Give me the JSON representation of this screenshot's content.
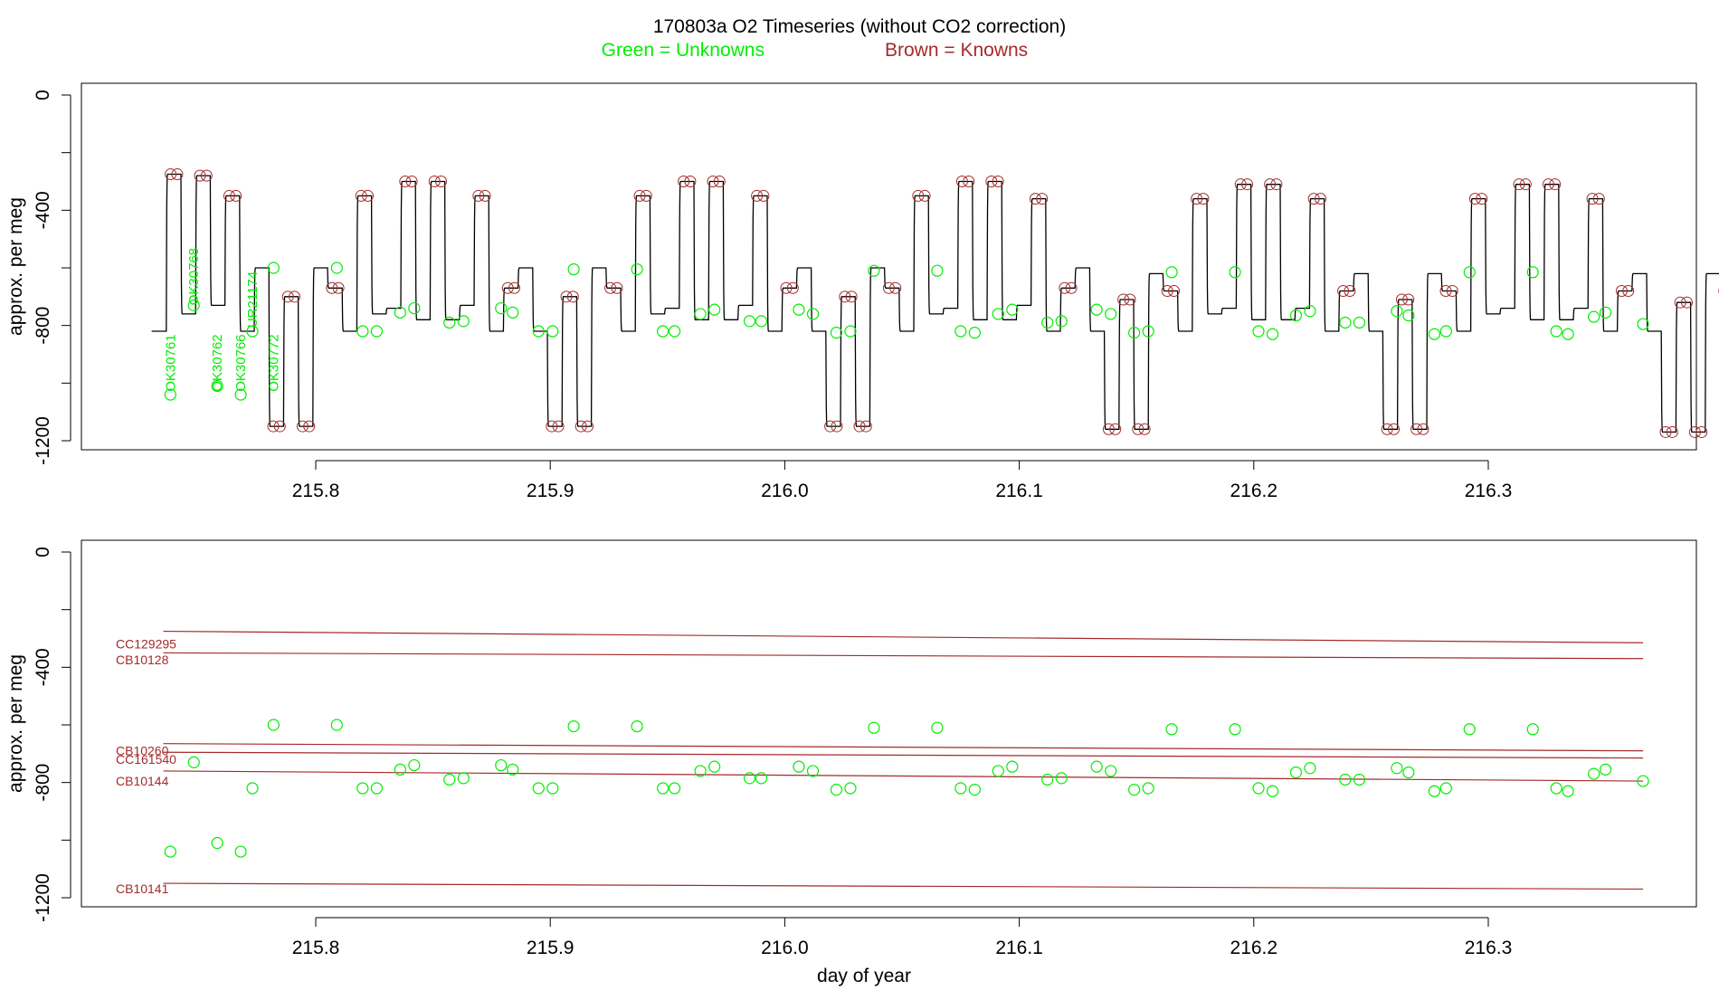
{
  "title_line1": "170803a   O2 Timeseries (without CO2 correction)",
  "legend": {
    "green_label": "Green = Unknowns",
    "brown_label": "Brown = Knowns",
    "green_color": "#00ee00",
    "brown_color": "#a52a2a"
  },
  "chart_data": [
    {
      "type": "line",
      "ylabel": "approx. per meg",
      "xlim": [
        215.73,
        216.37
      ],
      "ylim": [
        -1200,
        0
      ],
      "x_ticks": [
        "215.8",
        "215.9",
        "216.0",
        "216.1",
        "216.2",
        "216.3"
      ],
      "y_ticks": [
        "0",
        "-400",
        "-800",
        "-1200"
      ],
      "grid": false,
      "cycle_start_x": 215.73,
      "cycle_period": 0.00625,
      "series": [
        {
          "color": "#000000",
          "role": "raw-signal"
        }
      ],
      "cycle_levels": [
        -820,
        -275,
        -760,
        -280,
        -730,
        -350,
        -820,
        -600,
        -1150,
        -700,
        -1150,
        -600,
        -670,
        -820,
        -350,
        -760,
        -740,
        -300,
        -780,
        -300,
        -780,
        -730,
        -350,
        -820,
        -670,
        -600,
        -820,
        -1150,
        -700,
        -1150,
        -600,
        -670,
        -820,
        -350,
        -760,
        -740,
        -300,
        -780,
        -300,
        -780,
        -730,
        -350,
        -820,
        -670,
        -600,
        -820,
        -1150,
        -700,
        -1150,
        -600,
        -670,
        -820,
        -350,
        -760,
        -740,
        -300,
        -780,
        -300,
        -780,
        -730,
        -360,
        -820,
        -670,
        -600,
        -820,
        -1160,
        -710,
        -1160,
        -620,
        -680,
        -820,
        -360,
        -760,
        -740,
        -310,
        -780,
        -310,
        -780,
        -740,
        -360,
        -820,
        -680,
        -620,
        -820,
        -1160,
        -710,
        -1160,
        -620,
        -680,
        -820,
        -360,
        -760,
        -740,
        -310,
        -780,
        -310,
        -780,
        -740,
        -360,
        -820,
        -680,
        -620,
        -820,
        -1170,
        -720,
        -1170,
        -620,
        -680,
        -820,
        -370,
        -760,
        -740,
        -320,
        -780,
        -320,
        -790
      ],
      "unknown_points": [
        {
          "x": 215.738,
          "y": -1040
        },
        {
          "x": 215.758,
          "y": -1010
        },
        {
          "x": 215.768,
          "y": -1040
        },
        {
          "x": 215.748,
          "y": -730
        },
        {
          "x": 215.773,
          "y": -820
        },
        {
          "x": 215.782,
          "y": -600
        },
        {
          "x": 215.809,
          "y": -600
        },
        {
          "x": 215.82,
          "y": -820
        },
        {
          "x": 215.826,
          "y": -820
        },
        {
          "x": 215.836,
          "y": -755
        },
        {
          "x": 215.842,
          "y": -740
        },
        {
          "x": 215.857,
          "y": -790
        },
        {
          "x": 215.863,
          "y": -785
        },
        {
          "x": 215.879,
          "y": -740
        },
        {
          "x": 215.884,
          "y": -755
        },
        {
          "x": 215.895,
          "y": -820
        },
        {
          "x": 215.901,
          "y": -820
        },
        {
          "x": 215.91,
          "y": -605
        },
        {
          "x": 215.937,
          "y": -605
        },
        {
          "x": 215.948,
          "y": -820
        },
        {
          "x": 215.953,
          "y": -820
        },
        {
          "x": 215.964,
          "y": -760
        },
        {
          "x": 215.97,
          "y": -745
        },
        {
          "x": 215.985,
          "y": -785
        },
        {
          "x": 215.99,
          "y": -785
        },
        {
          "x": 216.006,
          "y": -745
        },
        {
          "x": 216.012,
          "y": -760
        },
        {
          "x": 216.022,
          "y": -825
        },
        {
          "x": 216.028,
          "y": -820
        },
        {
          "x": 216.038,
          "y": -610
        },
        {
          "x": 216.065,
          "y": -610
        },
        {
          "x": 216.075,
          "y": -820
        },
        {
          "x": 216.081,
          "y": -825
        },
        {
          "x": 216.091,
          "y": -760
        },
        {
          "x": 216.097,
          "y": -745
        },
        {
          "x": 216.112,
          "y": -790
        },
        {
          "x": 216.118,
          "y": -785
        },
        {
          "x": 216.133,
          "y": -745
        },
        {
          "x": 216.139,
          "y": -760
        },
        {
          "x": 216.149,
          "y": -825
        },
        {
          "x": 216.155,
          "y": -820
        },
        {
          "x": 216.165,
          "y": -615
        },
        {
          "x": 216.192,
          "y": -615
        },
        {
          "x": 216.202,
          "y": -820
        },
        {
          "x": 216.208,
          "y": -830
        },
        {
          "x": 216.218,
          "y": -765
        },
        {
          "x": 216.224,
          "y": -750
        },
        {
          "x": 216.239,
          "y": -790
        },
        {
          "x": 216.245,
          "y": -790
        },
        {
          "x": 216.261,
          "y": -750
        },
        {
          "x": 216.266,
          "y": -765
        },
        {
          "x": 216.277,
          "y": -830
        },
        {
          "x": 216.282,
          "y": -820
        },
        {
          "x": 216.292,
          "y": -615
        },
        {
          "x": 216.319,
          "y": -615
        },
        {
          "x": 216.329,
          "y": -820
        },
        {
          "x": 216.334,
          "y": -830
        },
        {
          "x": 216.345,
          "y": -770
        },
        {
          "x": 216.35,
          "y": -755
        },
        {
          "x": 216.366,
          "y": -795
        }
      ],
      "unknown_labels": [
        {
          "text": "OK30761",
          "x": 215.738,
          "y": -930
        },
        {
          "text": "OK30768",
          "x": 215.748,
          "y": -630
        },
        {
          "text": "OK30762",
          "x": 215.758,
          "y": -930
        },
        {
          "text": "OK30766",
          "x": 215.768,
          "y": -930
        },
        {
          "text": "UR21174",
          "x": 215.773,
          "y": -710
        },
        {
          "text": "OK30772",
          "x": 215.782,
          "y": -930
        }
      ]
    },
    {
      "type": "line",
      "xlabel": "day of year",
      "ylabel": "approx. per meg",
      "xlim": [
        215.73,
        216.37
      ],
      "ylim": [
        -1200,
        0
      ],
      "x_ticks": [
        "215.8",
        "215.9",
        "216.0",
        "216.1",
        "216.2",
        "216.3"
      ],
      "y_ticks": [
        "0",
        "-400",
        "-800",
        "-1200"
      ],
      "grid": false,
      "series": [
        {
          "name": "CC129295",
          "x": [
            215.735,
            216.366
          ],
          "y": [
            -275,
            -315
          ]
        },
        {
          "name": "CB10128",
          "x": [
            215.735,
            216.366
          ],
          "y": [
            -350,
            -370
          ]
        },
        {
          "name": "CB10260",
          "x": [
            215.735,
            216.366
          ],
          "y": [
            -665,
            -690
          ]
        },
        {
          "name": "CC161540",
          "x": [
            215.735,
            216.366
          ],
          "y": [
            -695,
            -715
          ]
        },
        {
          "name": "CB10144",
          "x": [
            215.735,
            216.366
          ],
          "y": [
            -760,
            -795
          ]
        },
        {
          "name": "CB10141",
          "x": [
            215.735,
            216.366
          ],
          "y": [
            -1150,
            -1170
          ]
        }
      ],
      "standard_labels": [
        {
          "text": "CC129295",
          "y": -335
        },
        {
          "text": "CB10128",
          "y": -390
        },
        {
          "text": "CB10260",
          "y": -705
        },
        {
          "text": "CC161540",
          "y": -735
        },
        {
          "text": "CB10144",
          "y": -810
        },
        {
          "text": "CB10141",
          "y": -1185
        }
      ]
    }
  ]
}
